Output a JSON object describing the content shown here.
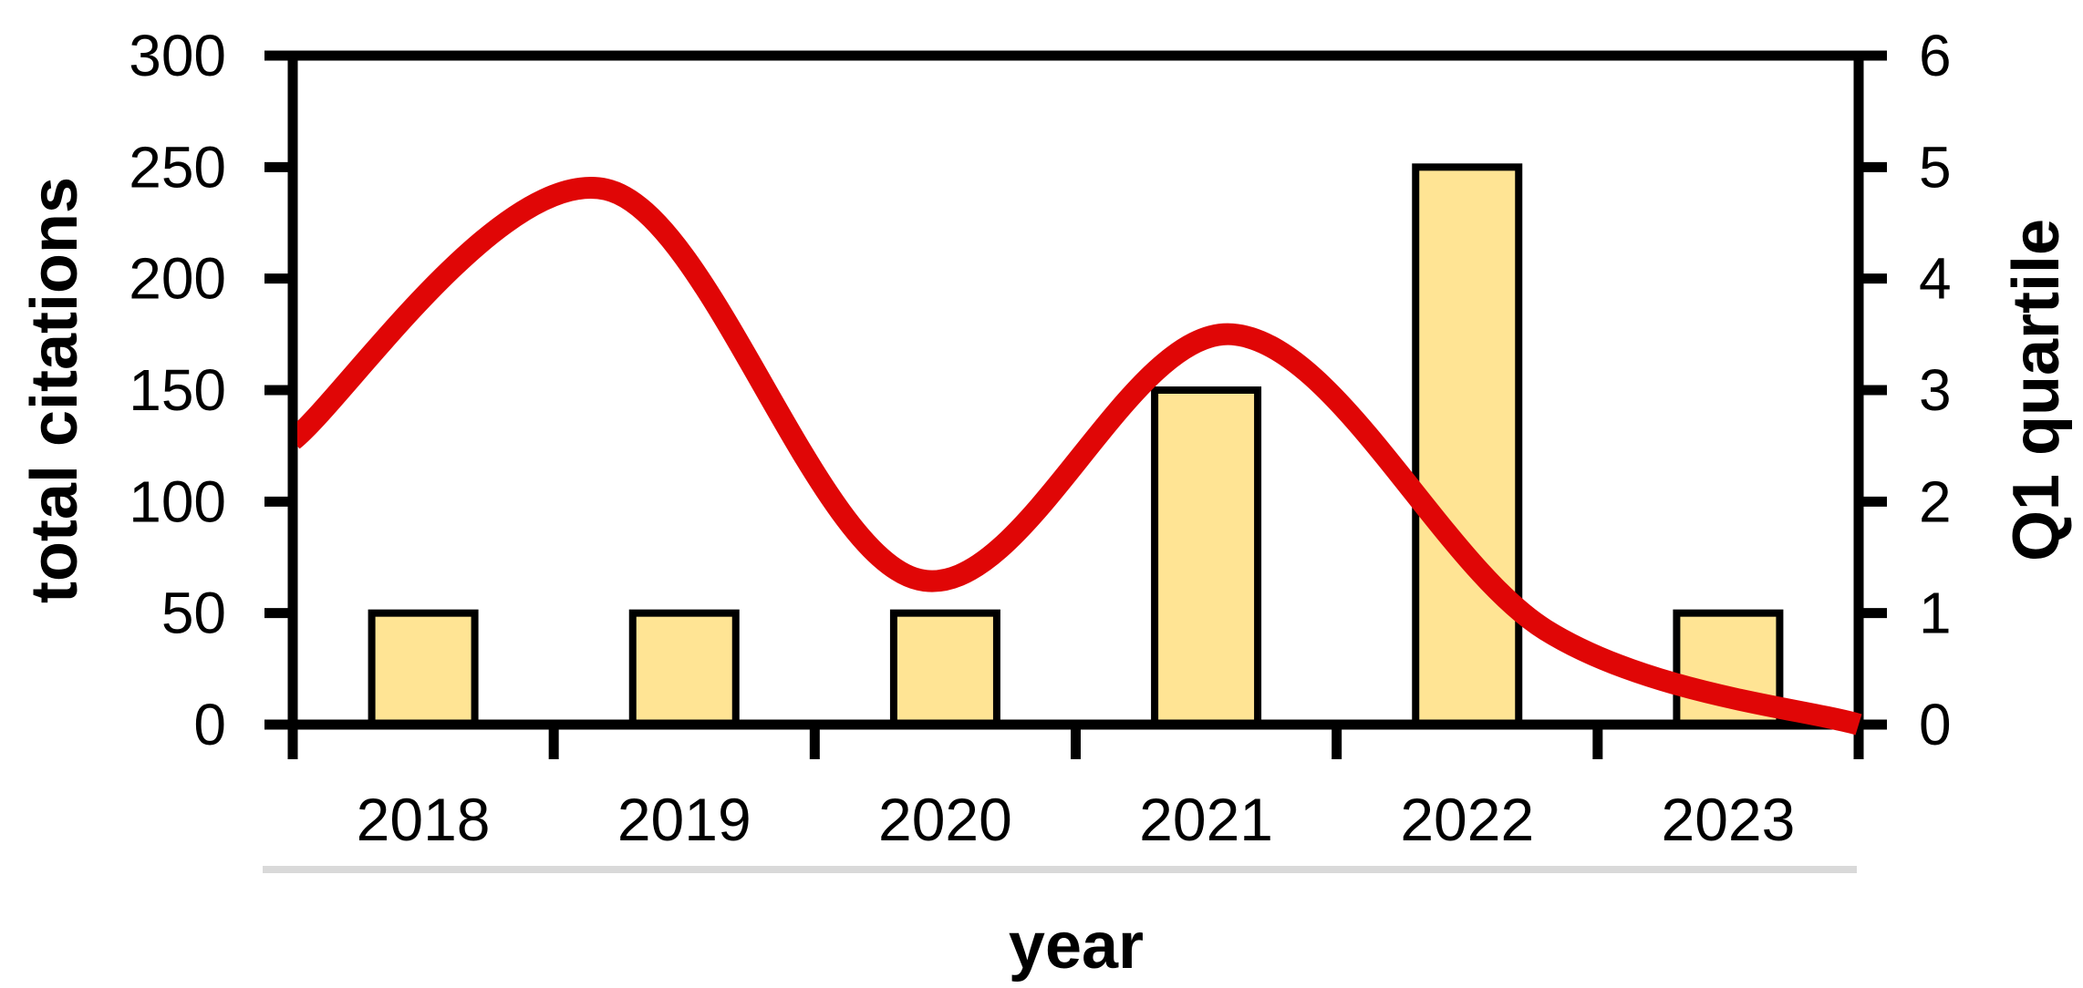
{
  "chart_data": {
    "type": "combo-bar-line",
    "title": "",
    "categories": [
      "2018",
      "2019",
      "2020",
      "2021",
      "2022",
      "2023"
    ],
    "series": [
      {
        "name": "total citations",
        "type": "bar",
        "axis": "left",
        "values": [
          50,
          50,
          50,
          150,
          250,
          50
        ],
        "fill": "#FFE494",
        "stroke": "#000000"
      },
      {
        "name": "Q1 quartile",
        "type": "line",
        "axis": "right",
        "smooth": true,
        "x_fractions": [
          0,
          0.2,
          0.4,
          0.6,
          0.8,
          1
        ],
        "values": [
          2.55,
          4.8,
          1.3,
          3.5,
          0.85,
          0
        ],
        "color": "#E00606"
      }
    ],
    "left_axis": {
      "label": "total citations",
      "min": 0,
      "max": 300,
      "step": 50,
      "ticks": [
        "0",
        "50",
        "100",
        "150",
        "200",
        "250",
        "300"
      ]
    },
    "right_axis": {
      "label": "Q1 quartile",
      "min": 0,
      "max": 6,
      "step": 1,
      "ticks": [
        "0",
        "1",
        "2",
        "3",
        "4",
        "5",
        "6"
      ]
    },
    "x_axis": {
      "label": "year",
      "tick_labels": [
        "2018",
        "2019",
        "2020",
        "2021",
        "2022",
        "2023"
      ]
    },
    "colors": {
      "bar_fill": "#FFE494",
      "bar_stroke": "#000000",
      "line": "#E00606",
      "axis": "#000000",
      "divider": "#D9D9D9",
      "background": "#FFFFFF"
    },
    "legend": "none",
    "grid": "off"
  }
}
